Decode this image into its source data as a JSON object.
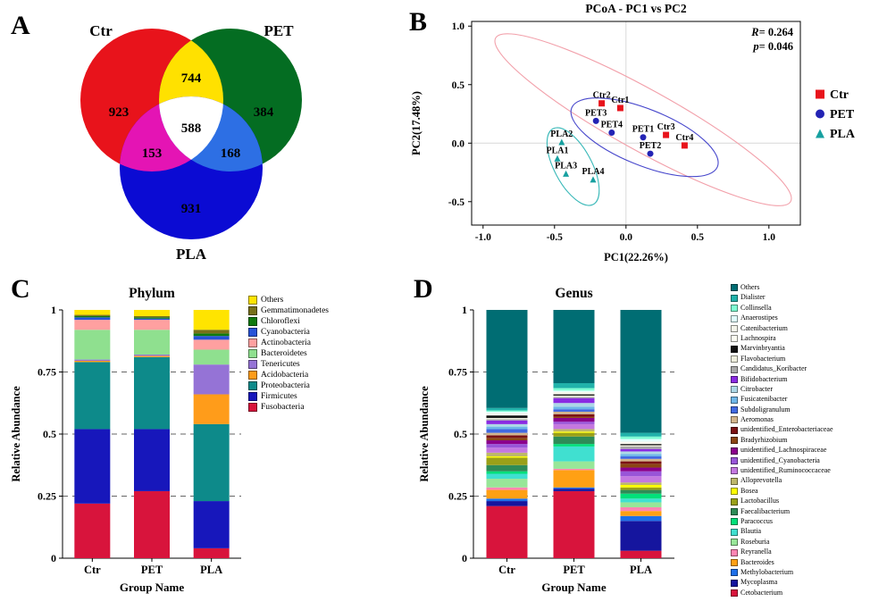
{
  "figure": {
    "panel_labels": {
      "A": "A",
      "B": "B",
      "C": "C",
      "D": "D"
    }
  },
  "chart_data": [
    {
      "panel": "A",
      "type": "venn",
      "sets": [
        {
          "label": "Ctr",
          "color": "#e8131b"
        },
        {
          "label": "PET",
          "color": "#046d22"
        },
        {
          "label": "PLA",
          "color": "#0b0bd3"
        }
      ],
      "regions": [
        {
          "name": "Ctr_only",
          "value": 923
        },
        {
          "name": "PET_only",
          "value": 384
        },
        {
          "name": "PLA_only",
          "value": 931
        },
        {
          "name": "Ctr_PET",
          "value": 744,
          "color": "#ffe100"
        },
        {
          "name": "Ctr_PLA",
          "value": 153,
          "color": "#e414b4"
        },
        {
          "name": "PET_PLA",
          "value": 168,
          "color": "#2d6fe4"
        },
        {
          "name": "Ctr_PET_PLA",
          "value": 588,
          "color": "#ffffff"
        }
      ]
    },
    {
      "panel": "B",
      "type": "scatter",
      "title": "PCoA - PC1 vs PC2",
      "xlabel": "PC1(22.26%)",
      "ylabel": "PC2(17.48%)",
      "xlim": [
        -1.08,
        1.22
      ],
      "ylim": [
        -0.7,
        1.04
      ],
      "xticks": [
        "-1.0",
        "-0.5",
        "0.0",
        "0.5",
        "1.0"
      ],
      "yticks": [
        "-0.5",
        "0.0",
        "0.5",
        "1.0"
      ],
      "stats": {
        "r_label": "R",
        "r_value": "= 0.264",
        "p_label": "p",
        "p_value": "= 0.046"
      },
      "series": [
        {
          "name": "Ctr",
          "color": "#e8131b",
          "marker": "square",
          "points": [
            [
              "Ctr1",
              -0.04,
              0.3
            ],
            [
              "Ctr2",
              -0.17,
              0.34
            ],
            [
              "Ctr3",
              0.28,
              0.07
            ],
            [
              "Ctr4",
              0.41,
              -0.02
            ]
          ],
          "ellipse": {
            "cx": 0.12,
            "cy": 0.2,
            "rx": 1.18,
            "ry": 0.26,
            "angle": 29,
            "color": "#f2a0aa"
          }
        },
        {
          "name": "PET",
          "color": "#2323b4",
          "marker": "circle",
          "points": [
            [
              "PET1",
              0.12,
              0.05
            ],
            [
              "PET2",
              0.17,
              -0.09
            ],
            [
              "PET3",
              -0.21,
              0.19
            ],
            [
              "PET4",
              -0.1,
              0.09
            ]
          ],
          "ellipse": {
            "cx": 0.13,
            "cy": 0.05,
            "rx": 0.55,
            "ry": 0.24,
            "angle": 22,
            "color": "#4848cc"
          }
        },
        {
          "name": "PLA",
          "color": "#17a0a0",
          "marker": "triangle",
          "points": [
            [
              "PLA1",
              -0.48,
              -0.13
            ],
            [
              "PLA2",
              -0.45,
              0.01
            ],
            [
              "PLA3",
              -0.42,
              -0.26
            ],
            [
              "PLA4",
              -0.23,
              -0.31
            ]
          ],
          "ellipse": {
            "cx": -0.37,
            "cy": -0.2,
            "rx": 0.3,
            "ry": 0.16,
            "angle": 62,
            "color": "#38b8b8"
          }
        }
      ]
    },
    {
      "panel": "C",
      "type": "bar",
      "stack": "bottom-to-top",
      "title": "Phylum",
      "xlabel": "Group Name",
      "ylabel": "Relative Abundance",
      "categories": [
        "Ctr",
        "PET",
        "PLA"
      ],
      "yticks": [
        "0",
        "0.25",
        "0.5",
        "0.75",
        "1"
      ],
      "ylim": [
        0,
        1
      ],
      "series": [
        {
          "name": "Fusobacteria",
          "color": "#d8143c",
          "values": [
            0.22,
            0.27,
            0.04
          ]
        },
        {
          "name": "Firmicutes",
          "color": "#1717bb",
          "values": [
            0.3,
            0.25,
            0.19
          ]
        },
        {
          "name": "Proteobacteria",
          "color": "#0d8a8a",
          "values": [
            0.27,
            0.29,
            0.31
          ]
        },
        {
          "name": "Acidobacteria",
          "color": "#ff9c1a",
          "values": [
            0.005,
            0.005,
            0.12
          ]
        },
        {
          "name": "Tenericutes",
          "color": "#9573d6",
          "values": [
            0.005,
            0.005,
            0.12
          ]
        },
        {
          "name": "Bacteroidetes",
          "color": "#8fe08f",
          "values": [
            0.12,
            0.1,
            0.06
          ]
        },
        {
          "name": "Actinobacteria",
          "color": "#ffa0a0",
          "values": [
            0.04,
            0.04,
            0.04
          ]
        },
        {
          "name": "Cyanobacteria",
          "color": "#2753d8",
          "values": [
            0.01,
            0.005,
            0.015
          ]
        },
        {
          "name": "Chloroflexi",
          "color": "#0f7a0f",
          "values": [
            0.005,
            0.005,
            0.01
          ]
        },
        {
          "name": "Gemmatimonadetes",
          "color": "#77701b",
          "values": [
            0.005,
            0.005,
            0.015
          ]
        },
        {
          "name": "Others",
          "color": "#ffe400",
          "values": [
            0.02,
            0.025,
            0.08
          ]
        }
      ]
    },
    {
      "panel": "D",
      "type": "bar",
      "stack": "bottom-to-top",
      "title": "Genus",
      "xlabel": "Group Name",
      "ylabel": "Relative Abundance",
      "categories": [
        "Ctr",
        "PET",
        "PLA"
      ],
      "yticks": [
        "0",
        "0.25",
        "0.5",
        "0.75",
        "1"
      ],
      "ylim": [
        0,
        1
      ],
      "series": [
        {
          "name": "Cetobacterium",
          "color": "#d8143c",
          "values": [
            0.21,
            0.27,
            0.03
          ]
        },
        {
          "name": "Mycoplasma",
          "color": "#15159e",
          "values": [
            0.02,
            0.01,
            0.12
          ]
        },
        {
          "name": "Methylobacterium",
          "color": "#1e6fe8",
          "values": [
            0.01,
            0.005,
            0.02
          ]
        },
        {
          "name": "Bacteroides",
          "color": "#ffa014",
          "values": [
            0.035,
            0.07,
            0.02
          ]
        },
        {
          "name": "Reyranella",
          "color": "#ff85b3",
          "values": [
            0.01,
            0.005,
            0.015
          ]
        },
        {
          "name": "Roseburia",
          "color": "#98e698",
          "values": [
            0.035,
            0.03,
            0.02
          ]
        },
        {
          "name": "Blautia",
          "color": "#40e0d0",
          "values": [
            0.02,
            0.06,
            0.015
          ]
        },
        {
          "name": "Paracoccus",
          "color": "#00e07a",
          "values": [
            0.01,
            0.01,
            0.02
          ]
        },
        {
          "name": "Faecalibacterium",
          "color": "#2e8b57",
          "values": [
            0.025,
            0.03,
            0.015
          ]
        },
        {
          "name": "Lactobacillus",
          "color": "#9aa018",
          "values": [
            0.03,
            0.015,
            0.01
          ]
        },
        {
          "name": "Bosea",
          "color": "#ffff00",
          "values": [
            0.005,
            0.005,
            0.01
          ]
        },
        {
          "name": "Alloprevotella",
          "color": "#bdb76b",
          "values": [
            0.015,
            0.01,
            0.01
          ]
        },
        {
          "name": "unidentified_Ruminococcaceae",
          "color": "#c478e0",
          "values": [
            0.02,
            0.02,
            0.025
          ]
        },
        {
          "name": "unidentified_Cyanobacteria",
          "color": "#9955d8",
          "values": [
            0.015,
            0.01,
            0.02
          ]
        },
        {
          "name": "unidentified_Lachnospiraceae",
          "color": "#8b008b",
          "values": [
            0.015,
            0.015,
            0.015
          ]
        },
        {
          "name": "Bradyrhizobium",
          "color": "#8b4513",
          "values": [
            0.01,
            0.005,
            0.015
          ]
        },
        {
          "name": "unidentified_Enterobacteriaceae",
          "color": "#7b1113",
          "values": [
            0.01,
            0.01,
            0.01
          ]
        },
        {
          "name": "Aeromonas",
          "color": "#d2b48c",
          "values": [
            0.01,
            0.01,
            0.01
          ]
        },
        {
          "name": "Subdoligranulum",
          "color": "#4169e1",
          "values": [
            0.015,
            0.01,
            0.01
          ]
        },
        {
          "name": "Fusicatenibacter",
          "color": "#6fb7e8",
          "values": [
            0.01,
            0.01,
            0.01
          ]
        },
        {
          "name": "Citrobacter",
          "color": "#add8e6",
          "values": [
            0.01,
            0.015,
            0.01
          ]
        },
        {
          "name": "Bifidobacterium",
          "color": "#8a2be2",
          "values": [
            0.015,
            0.02,
            0.01
          ]
        },
        {
          "name": "Candidatus_Koribacter",
          "color": "#a8a8a8",
          "values": [
            0.005,
            0.005,
            0.01
          ]
        },
        {
          "name": "Flavobacterium",
          "color": "#eeeedd",
          "values": [
            0.005,
            0.005,
            0.005
          ]
        },
        {
          "name": "Marvinbryantia",
          "color": "#111111",
          "values": [
            0.01,
            0.005,
            0.005
          ]
        },
        {
          "name": "Lachnospira",
          "color": "#fcfcf2",
          "values": [
            0.005,
            0.005,
            0.005
          ]
        },
        {
          "name": "Catenibacterium",
          "color": "#f4f4ea",
          "values": [
            0.005,
            0.005,
            0.005
          ]
        },
        {
          "name": "Anaerostipes",
          "color": "#e0ffff",
          "values": [
            0.005,
            0.005,
            0.01
          ]
        },
        {
          "name": "Collinsella",
          "color": "#7fffd4",
          "values": [
            0.005,
            0.01,
            0.01
          ]
        },
        {
          "name": "Dialister",
          "color": "#20b2aa",
          "values": [
            0.01,
            0.02,
            0.015
          ]
        },
        {
          "name": "Others",
          "color": "#006d73",
          "values": [
            0.395,
            0.295,
            0.495
          ]
        }
      ]
    }
  ]
}
